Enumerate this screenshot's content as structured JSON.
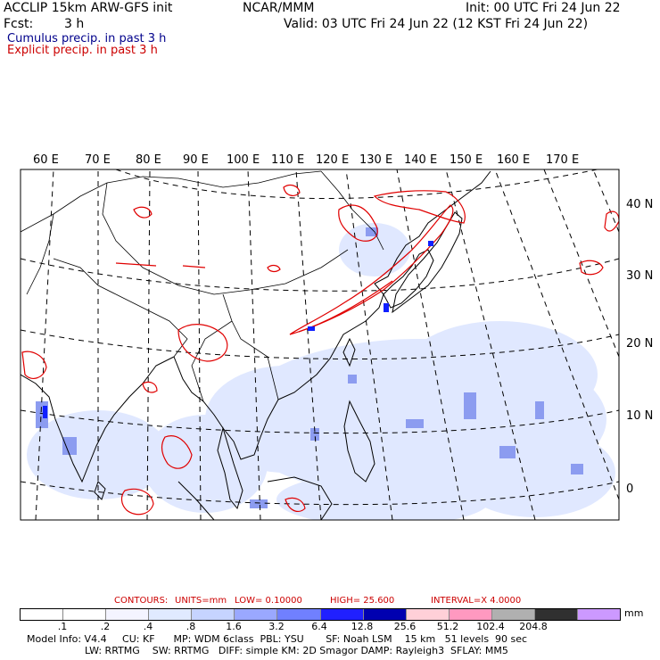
{
  "header": {
    "title_line1": "ACCLIP 15km ARW-GFS init",
    "fcst_label": "Fcst:",
    "fcst_value": "3 h",
    "center_label": "NCAR/MMM",
    "init": "Init: 00 UTC Fri 24 Jun 22",
    "valid": "Valid: 03 UTC Fri 24 Jun 22 (12 KST Fri 24 Jun 22)",
    "cumulus": "Cumulus precip. in past 3 h",
    "explicit": "Explicit precip. in past 3 h"
  },
  "map": {
    "lon_labels": [
      "60 E",
      "70 E",
      "80 E",
      "90 E",
      "100 E",
      "110 E",
      "120 E",
      "130 E",
      "140 E",
      "150 E",
      "160 E",
      "170 E"
    ],
    "lat_labels": [
      "40 N",
      "30 N",
      "20 N",
      "10 N",
      "0"
    ],
    "colors": {
      "border": "#000000",
      "explicit_contour": "#e00000",
      "cumulus_light": "#dde8ff",
      "cumulus_mid": "#8c9cf0"
    }
  },
  "legend": {
    "contours_label": "CONTOURS:",
    "units": "UNITS=mm",
    "low": "LOW= 0.10000",
    "high": "HIGH= 25.600",
    "interval": "INTERVAL=X 4.0000",
    "unit_label": "mm",
    "tick_labels": [
      ".1",
      ".2",
      ".4",
      ".8",
      "1.6",
      "3.2",
      "6.4",
      "12.8",
      "25.6",
      "51.2",
      "102.4",
      "204.8"
    ],
    "bin_colors": [
      "#ffffff",
      "#ffffff",
      "#f4f4ff",
      "#e0eaff",
      "#c6d4ff",
      "#9aa8ff",
      "#7080ff",
      "#2020ff",
      "#0000b0",
      "#ffd0d8",
      "#ff99c0",
      "#b0b0b0",
      "#303030",
      "#cc99ff"
    ]
  },
  "footer": {
    "line1": "Model Info: V4.4     CU: KF      MP: WDM 6class  PBL: YSU       SF: Noah LSM    15 km   51 levels  90 sec",
    "line2": "LW: RRTMG    SW: RRTMG   DIFF: simple KM: 2D Smagor DAMP: Rayleigh3  SFLAY: MM5"
  }
}
